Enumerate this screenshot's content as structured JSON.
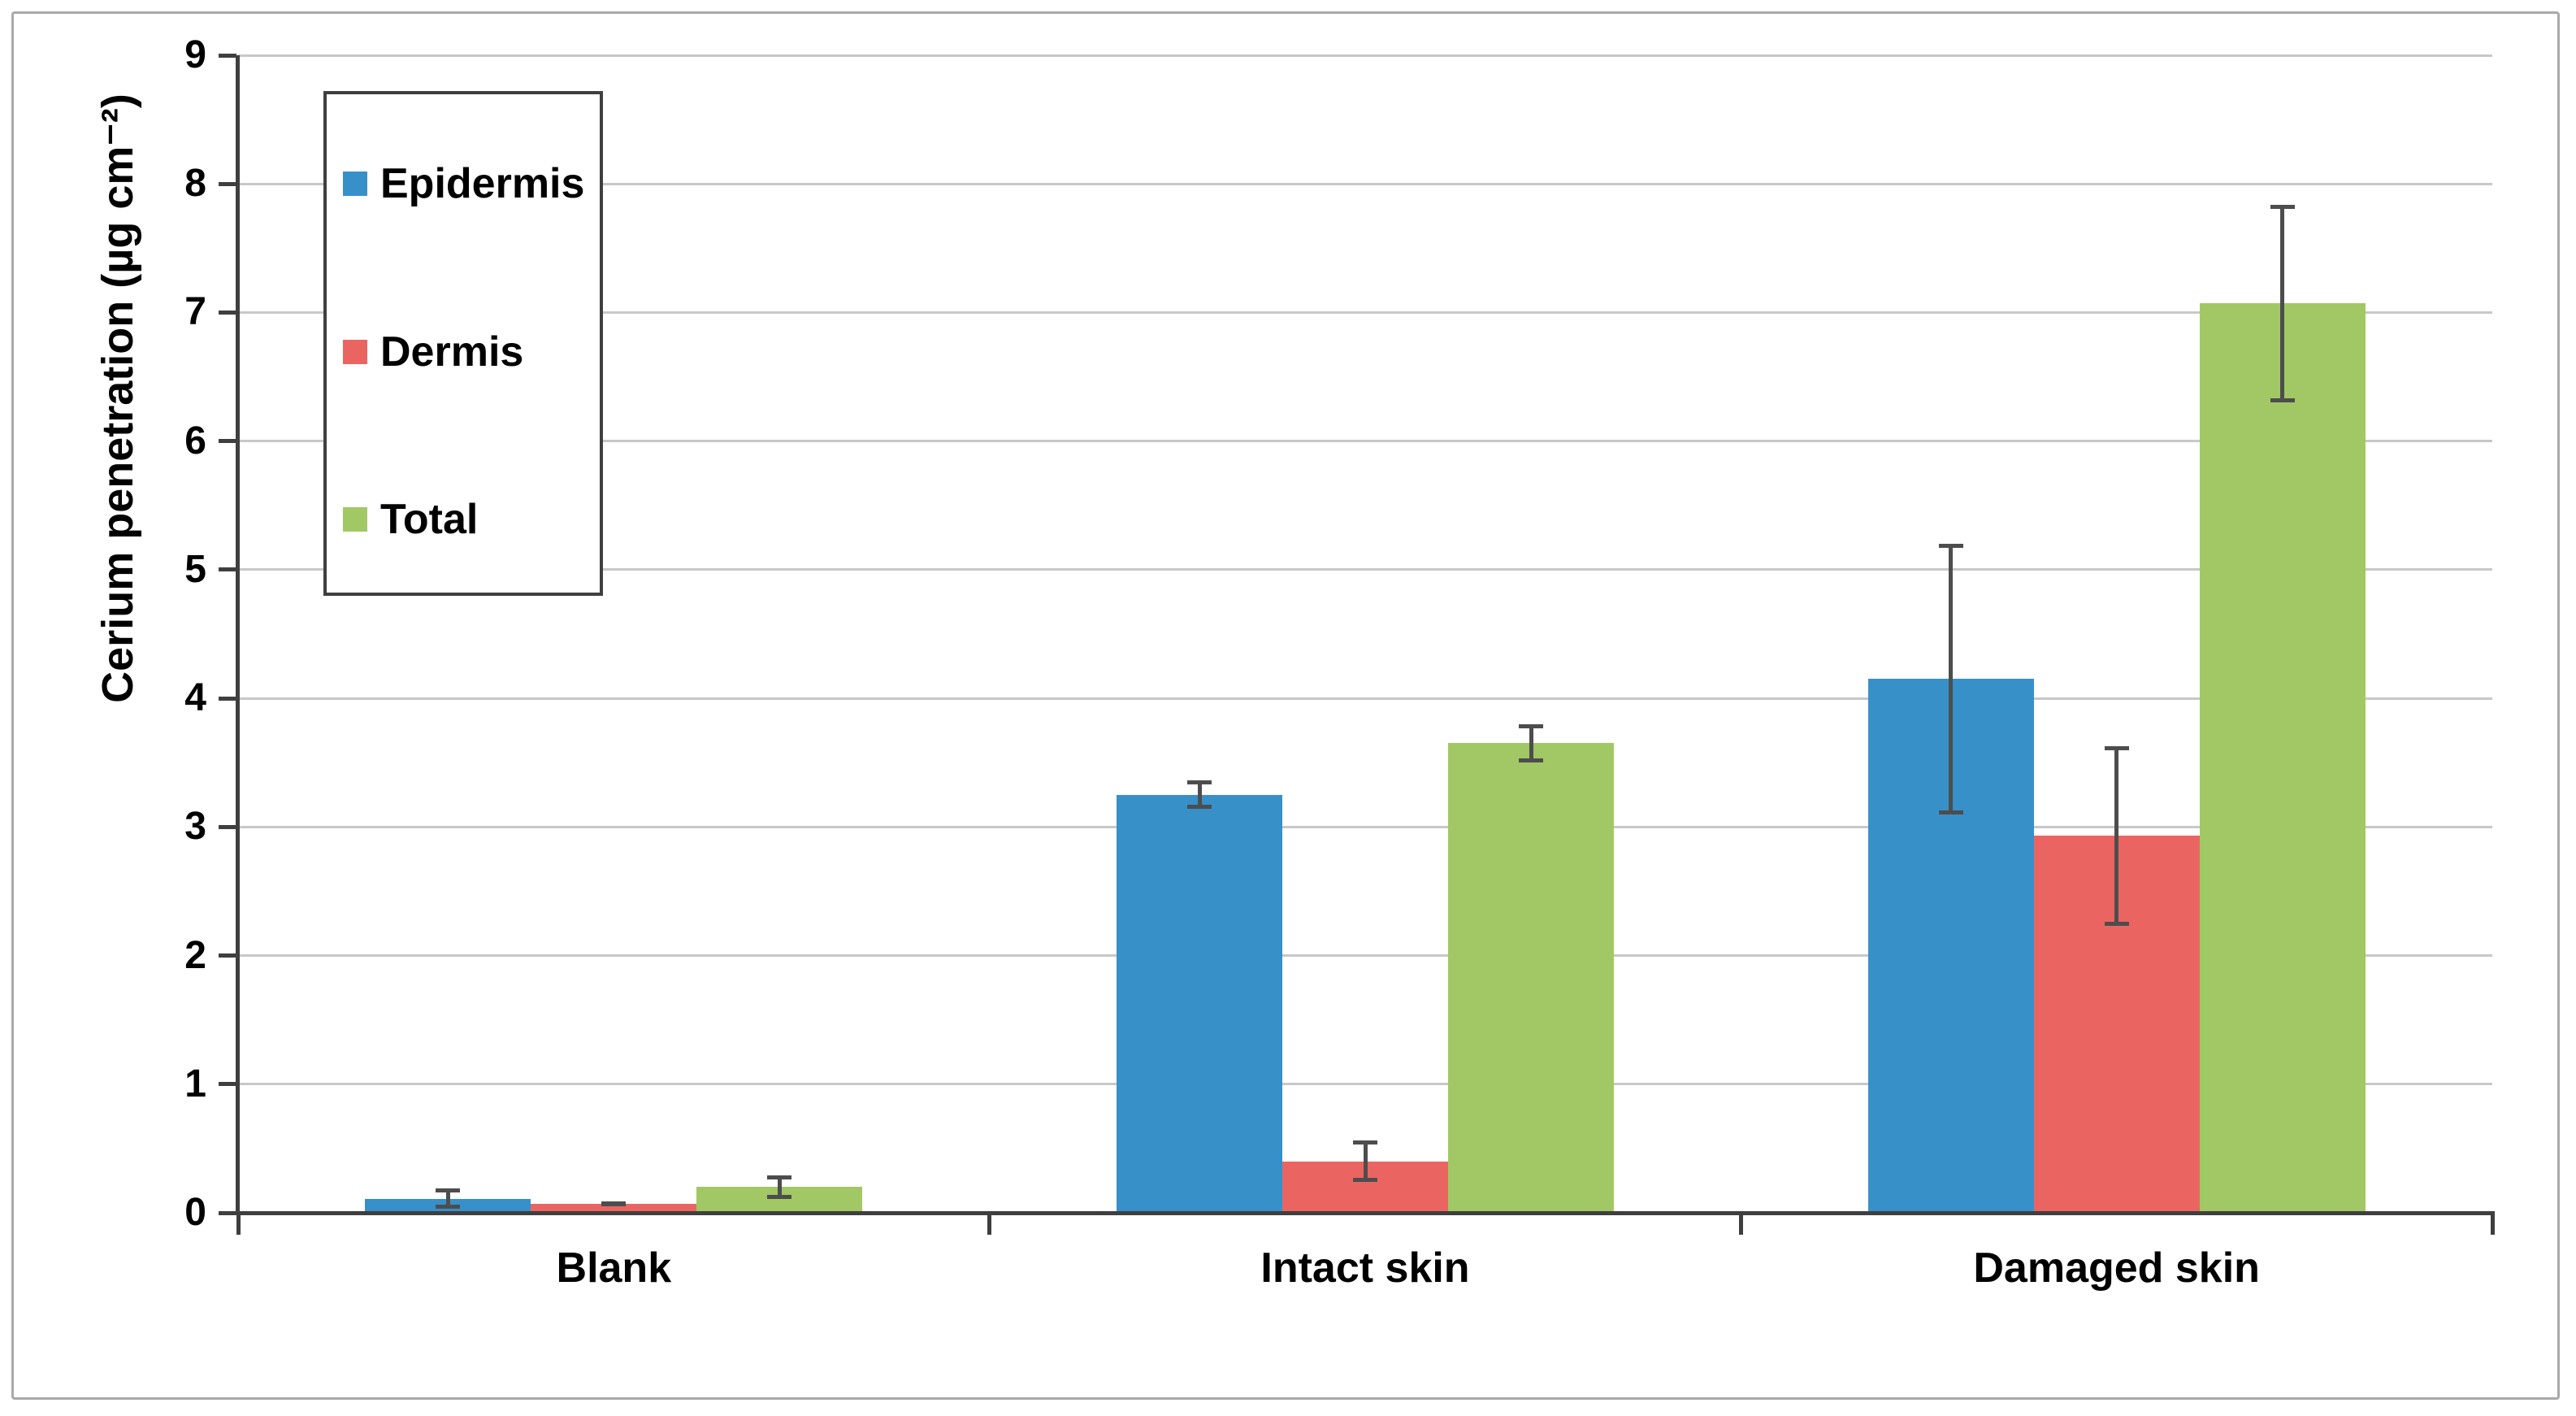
{
  "figure": {
    "background": "#ffffff",
    "border_color": "#a9a9a9"
  },
  "chart_data": {
    "type": "bar",
    "title": "",
    "xlabel": "",
    "ylabel": "Cerium penetration (µg cm⁻²)",
    "ylim": [
      0,
      9
    ],
    "yticks": [
      "0",
      "1",
      "2",
      "3",
      "4",
      "5",
      "6",
      "7",
      "8",
      "9"
    ],
    "categories": [
      "Blank",
      "Intact skin",
      "Damaged skin"
    ],
    "series": [
      {
        "name": "Epidermis",
        "color": "#3890c9",
        "values": [
          0.11,
          3.25,
          4.15
        ],
        "errors": [
          0.08,
          0.11,
          1.05
        ]
      },
      {
        "name": "Dermis",
        "color": "#ea6562",
        "values": [
          0.07,
          0.4,
          2.93
        ],
        "errors": [
          0.02,
          0.16,
          0.7
        ]
      },
      {
        "name": "Total",
        "color": "#a2c865",
        "values": [
          0.2,
          3.65,
          7.07
        ],
        "errors": [
          0.09,
          0.15,
          0.77
        ]
      }
    ],
    "error_bars": true,
    "grid": "horizontal-major",
    "legend": {
      "position": "inside-top-left",
      "entries": [
        "Epidermis",
        "Dermis",
        "Total"
      ]
    },
    "axis_color": "#3f3f3f",
    "gridline_color": "#c8c8c8",
    "error_bar_color": "#4d4d4d"
  }
}
